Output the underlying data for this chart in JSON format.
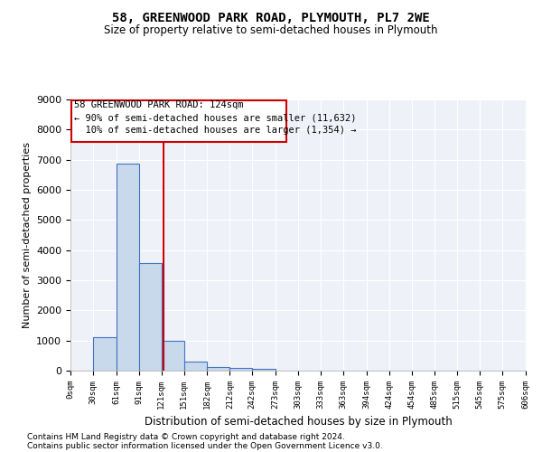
{
  "title": "58, GREENWOOD PARK ROAD, PLYMOUTH, PL7 2WE",
  "subtitle": "Size of property relative to semi-detached houses in Plymouth",
  "xlabel": "Distribution of semi-detached houses by size in Plymouth",
  "ylabel": "Number of semi-detached properties",
  "property_label": "58 GREENWOOD PARK ROAD: 124sqm",
  "pct_smaller": 90,
  "count_smaller": "11,632",
  "pct_larger": 10,
  "count_larger": "1,354",
  "bin_edges": [
    0,
    30,
    61,
    91,
    121,
    151,
    182,
    212,
    242,
    273,
    303,
    333,
    363,
    394,
    424,
    454,
    485,
    515,
    545,
    575,
    606
  ],
  "bar_heights": [
    0,
    1100,
    6880,
    3560,
    1000,
    310,
    130,
    90,
    70,
    0,
    0,
    0,
    0,
    0,
    0,
    0,
    0,
    0,
    0,
    0
  ],
  "bar_color": "#c9d9ec",
  "bar_edge_color": "#4472c4",
  "vline_color": "#cc0000",
  "vline_x": 124,
  "ylim": [
    0,
    9000
  ],
  "yticks": [
    0,
    1000,
    2000,
    3000,
    4000,
    5000,
    6000,
    7000,
    8000,
    9000
  ],
  "background_color": "#eef2f8",
  "grid_color": "#ffffff",
  "annotation_box_color": "#cc0000",
  "footer1": "Contains HM Land Registry data © Crown copyright and database right 2024.",
  "footer2": "Contains public sector information licensed under the Open Government Licence v3.0."
}
